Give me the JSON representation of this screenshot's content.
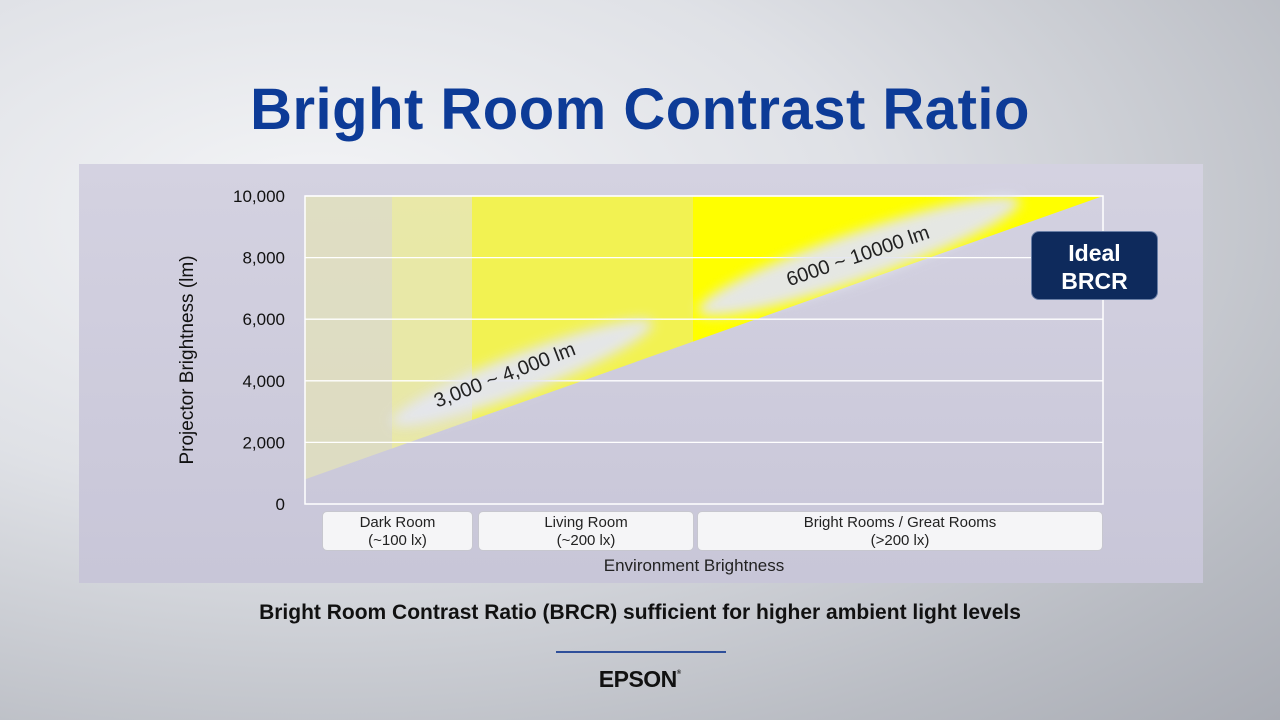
{
  "title": "Bright Room Contrast Ratio",
  "caption": "Bright Room Contrast Ratio (BRCR) sufficient for higher ambient light levels",
  "brand": {
    "name": "EPSON",
    "mark": "®"
  },
  "badge": {
    "line1": "Ideal",
    "line2": "BRCR"
  },
  "colors": {
    "title": "#0d3b97",
    "highlight": "#ffff00",
    "badge": "#0e2a5c"
  },
  "chart_data": {
    "type": "area",
    "ylabel": "Projector Brightness (lm)",
    "xlabel": "Environment Brightness",
    "ylim": [
      0,
      10000
    ],
    "y_ticks": [
      "0",
      "2,000",
      "4,000",
      "6,000",
      "8,000",
      "10,000"
    ],
    "y_tick_values": [
      0,
      2000,
      4000,
      6000,
      8000,
      10000
    ],
    "grid": true,
    "categories": [
      {
        "name": "Dark Room",
        "sub": "(~100 lx)"
      },
      {
        "name": "Living Room",
        "sub": "(~200 lx)"
      },
      {
        "name": "Bright Rooms / Great Rooms",
        "sub": "(>200 lx)"
      }
    ],
    "boundary_line": {
      "start_y": 800,
      "end_y": 10000
    },
    "ranges": [
      {
        "label": "3,000 ~ 4,000 lm"
      },
      {
        "label": "6000 ~ 10000 lm"
      }
    ]
  }
}
